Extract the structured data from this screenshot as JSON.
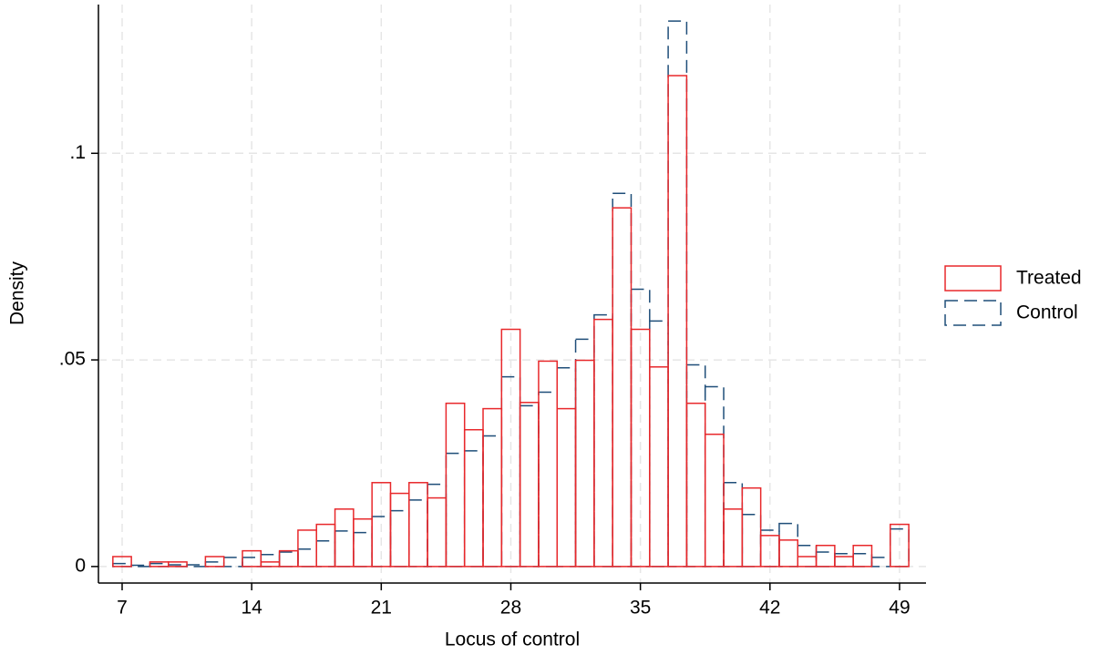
{
  "chart_data": {
    "type": "histogram",
    "x_label": "Locus of control",
    "y_label": "Density",
    "bins": [
      6.5,
      7.5,
      8.5,
      9.5,
      10.5,
      11.5,
      12.5,
      13.5,
      14.5,
      15.5,
      16.5,
      17.5,
      18.5,
      19.5,
      20.5,
      21.5,
      22.5,
      23.5,
      24.5,
      25.5,
      26.5,
      27.5,
      28.5,
      29.5,
      30.5,
      31.5,
      32.5,
      33.5,
      34.5,
      35.5,
      36.5,
      37.5,
      38.5,
      39.5,
      40.5,
      41.5,
      42.5,
      43.5,
      44.5,
      45.5,
      46.5,
      47.5,
      48.5,
      49.5
    ],
    "series": [
      {
        "name": "Control",
        "color": "#1f4e79",
        "dashed": true,
        "values": [
          0.0007,
          0.0003,
          0.0007,
          0.0004,
          0.0004,
          0.0011,
          0.0022,
          0.0022,
          0.0029,
          0.0035,
          0.0042,
          0.0062,
          0.0086,
          0.0082,
          0.0121,
          0.0135,
          0.0161,
          0.0199,
          0.0274,
          0.028,
          0.0316,
          0.0459,
          0.0389,
          0.0422,
          0.0481,
          0.055,
          0.0609,
          0.0903,
          0.0671,
          0.0594,
          0.132,
          0.0488,
          0.0435,
          0.0203,
          0.0126,
          0.0088,
          0.0104,
          0.0051,
          0.0035,
          0.0031,
          0.0031,
          0.0022,
          0.0091
        ]
      },
      {
        "name": "Treated",
        "color": "#e8282b",
        "dashed": false,
        "values": [
          0.0024,
          0,
          0.0011,
          0.0011,
          0,
          0.0024,
          0,
          0.0038,
          0.0011,
          0.0038,
          0.0088,
          0.0102,
          0.0139,
          0.0115,
          0.0203,
          0.0177,
          0.0203,
          0.0166,
          0.0395,
          0.0331,
          0.0382,
          0.0574,
          0.0397,
          0.0497,
          0.0382,
          0.0499,
          0.0598,
          0.0868,
          0.0574,
          0.0483,
          0.1188,
          0.0395,
          0.032,
          0.0139,
          0.019,
          0.0075,
          0.0064,
          0.0024,
          0.0051,
          0.0024,
          0.0051,
          0,
          0.0102
        ]
      }
    ],
    "legend_order": [
      "Treated",
      "Control"
    ],
    "xlim": [
      5.72,
      50.43
    ],
    "ylim": [
      -0.004,
      0.136
    ],
    "xticks": [
      7,
      14,
      21,
      28,
      35,
      42,
      49
    ],
    "yticks": [
      0,
      {
        "value": 0.05,
        "label": ".05"
      },
      {
        "value": 0.1,
        "label": ".1"
      }
    ],
    "grid": true,
    "legend_position": "right"
  }
}
